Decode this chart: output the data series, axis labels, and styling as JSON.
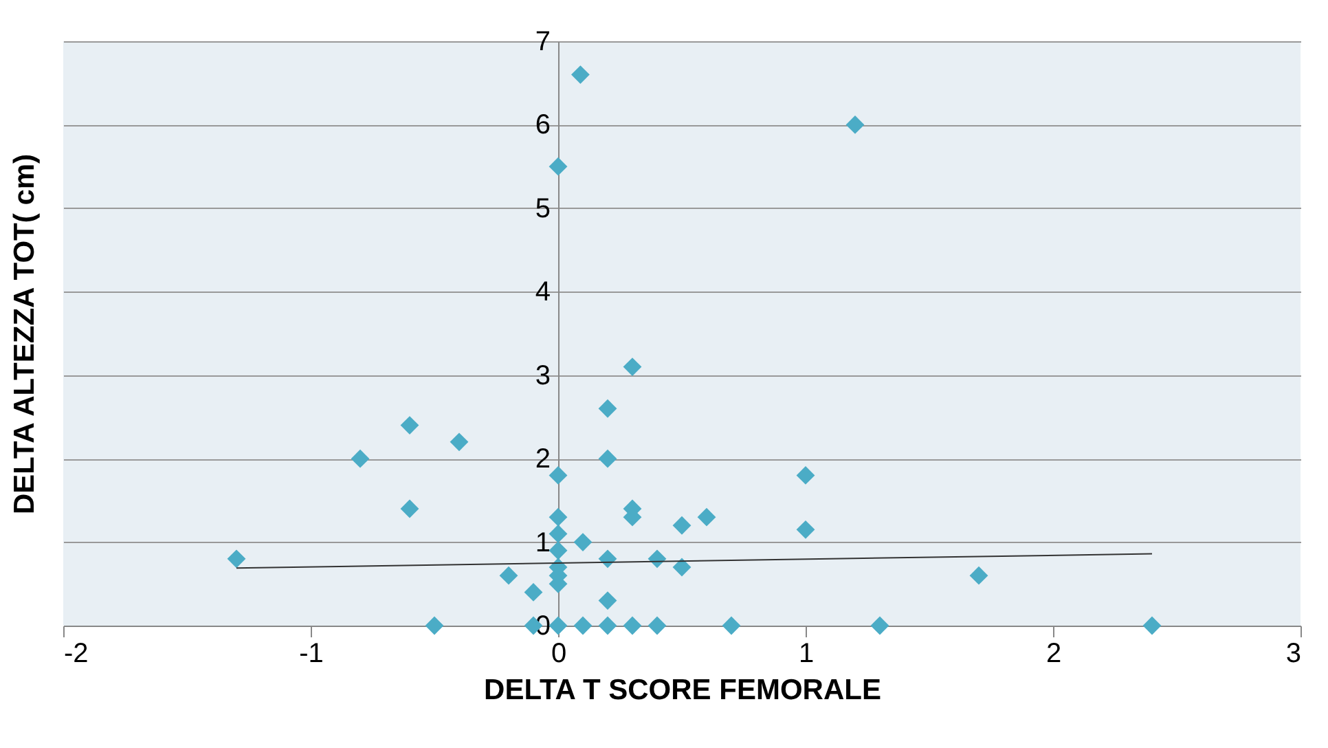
{
  "chart_data": {
    "type": "scatter",
    "xlabel": "DELTA T SCORE FEMORALE",
    "ylabel": "DELTA ALTEZZA TOT( cm)",
    "xlim": [
      -2,
      3
    ],
    "xticks": [
      -2,
      -1,
      0,
      1,
      2,
      3
    ],
    "ylim": [
      0,
      7
    ],
    "yticks": [
      0,
      1,
      2,
      3,
      4,
      5,
      6,
      7
    ],
    "grid": "y",
    "series": [
      {
        "type": "scatter",
        "color": "#4bacc6",
        "marker": "diamond",
        "x": [
          0.09,
          1.2,
          0,
          0.3,
          0.2,
          -0.6,
          -0.4,
          -0.8,
          0.2,
          0,
          1.0,
          -0.6,
          0.3,
          0.3,
          0,
          0.6,
          0.5,
          1.0,
          0,
          0.1,
          0,
          -1.3,
          0.2,
          0.4,
          0,
          0.5,
          0,
          -0.2,
          1.7,
          0,
          -0.1,
          0.2,
          -0.5,
          -0.1,
          0,
          0.1,
          0.2,
          0.3,
          0.4,
          0.7,
          1.3,
          2.4
        ],
        "values": [
          6.6,
          6.0,
          5.5,
          3.1,
          2.6,
          2.4,
          2.2,
          2.0,
          2.0,
          1.8,
          1.8,
          1.4,
          1.4,
          1.3,
          1.3,
          1.3,
          1.2,
          1.15,
          1.1,
          1.0,
          0.9,
          0.8,
          0.8,
          0.8,
          0.7,
          0.7,
          0.6,
          0.6,
          0.6,
          0.5,
          0.4,
          0.3,
          0,
          0,
          0,
          0,
          0,
          0,
          0,
          0,
          0,
          0
        ]
      },
      {
        "type": "line",
        "color": "#333333",
        "x": [
          -1.3,
          2.4
        ],
        "values": [
          0.69,
          0.86
        ]
      }
    ]
  }
}
